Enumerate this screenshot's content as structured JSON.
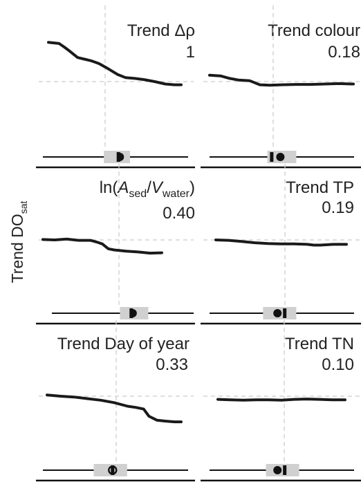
{
  "figure": {
    "y_label": "Trend DO",
    "y_label_sub": "sat"
  },
  "colors": {
    "line": "#1a1a1a",
    "grid": "#cccccc",
    "box": "#d0d0d0",
    "ink": "#111111"
  },
  "chart_data": [
    {
      "type": "line",
      "title": "Trend Δρ",
      "value_label": "1",
      "x": [
        0,
        0.08,
        0.12,
        0.16,
        0.22,
        0.27,
        0.32,
        0.38,
        0.45,
        0.52,
        0.58,
        0.65,
        0.72,
        0.8,
        0.88,
        0.95,
        1
      ],
      "y": [
        0.98,
        0.95,
        0.86,
        0.76,
        0.6,
        0.56,
        0.52,
        0.45,
        0.32,
        0.18,
        0.1,
        0.08,
        0.05,
        0.0,
        -0.06,
        -0.08,
        -0.08
      ],
      "box": {
        "q1": 0.42,
        "q3": 0.6,
        "median_bar": 0.52,
        "mean_dot": 0.53,
        "dot_style": "half"
      }
    },
    {
      "type": "line",
      "title": "Trend colour",
      "value_label": "0.18",
      "x": [
        0,
        0.08,
        0.14,
        0.2,
        0.28,
        0.35,
        0.42,
        0.5,
        0.6,
        0.7,
        0.8,
        0.9,
        1
      ],
      "y": [
        0.16,
        0.14,
        0.08,
        0.04,
        0.02,
        -0.08,
        -0.09,
        -0.08,
        -0.07,
        -0.07,
        -0.06,
        -0.05,
        -0.06
      ],
      "box": {
        "q1": 0.4,
        "q3": 0.6,
        "median_bar": 0.43,
        "mean_dot": 0.49,
        "dot_style": "full"
      }
    },
    {
      "type": "line",
      "title_parts": [
        "ln(",
        "A",
        "sed",
        "/",
        "V",
        "water",
        ")"
      ],
      "value_label": "0.40",
      "x": [
        0,
        0.1,
        0.2,
        0.3,
        0.4,
        0.45,
        0.5,
        0.55,
        0.6,
        0.7,
        0.8,
        0.9,
        1
      ],
      "y": [
        0.01,
        0.0,
        0.02,
        -0.01,
        -0.01,
        -0.05,
        -0.1,
        -0.22,
        -0.25,
        -0.28,
        -0.3,
        -0.33,
        -0.32
      ],
      "box": {
        "q1": 0.48,
        "q3": 0.68,
        "median_bar": 0.56,
        "mean_dot": 0.57,
        "dot_style": "half"
      }
    },
    {
      "type": "line",
      "title": "Trend TP",
      "value_label": "0.19",
      "x": [
        0,
        0.1,
        0.2,
        0.3,
        0.4,
        0.5,
        0.6,
        0.7,
        0.75,
        0.8,
        0.9,
        1
      ],
      "y": [
        0.0,
        -0.01,
        -0.04,
        -0.07,
        -0.09,
        -0.1,
        -0.1,
        -0.11,
        -0.13,
        -0.13,
        -0.11,
        -0.11
      ],
      "box": {
        "q1": 0.37,
        "q3": 0.6,
        "median_bar": 0.52,
        "mean_dot": 0.47,
        "dot_style": "full"
      }
    },
    {
      "type": "line",
      "title": "Trend Day of year",
      "value_label": "0.33",
      "x": [
        0,
        0.1,
        0.2,
        0.3,
        0.4,
        0.5,
        0.6,
        0.66,
        0.72,
        0.76,
        0.82,
        0.88,
        0.95,
        1
      ],
      "y": [
        0.03,
        0.0,
        -0.02,
        -0.06,
        -0.1,
        -0.16,
        -0.25,
        -0.28,
        -0.32,
        -0.5,
        -0.6,
        -0.62,
        -0.64,
        -0.64
      ],
      "box": {
        "q1": 0.35,
        "q3": 0.58,
        "median_bar": 0.48,
        "mean_dot": 0.48,
        "dot_style": "ring"
      }
    },
    {
      "type": "line",
      "title": "Trend TN",
      "value_label": "0.10",
      "x": [
        0,
        0.1,
        0.2,
        0.3,
        0.4,
        0.5,
        0.6,
        0.7,
        0.8,
        0.9,
        1
      ],
      "y": [
        -0.08,
        -0.09,
        -0.1,
        -0.09,
        -0.09,
        -0.1,
        -0.08,
        -0.07,
        -0.08,
        -0.09,
        -0.09
      ],
      "box": {
        "q1": 0.39,
        "q3": 0.62,
        "median_bar": 0.52,
        "mean_dot": 0.47,
        "dot_style": "full"
      }
    }
  ]
}
